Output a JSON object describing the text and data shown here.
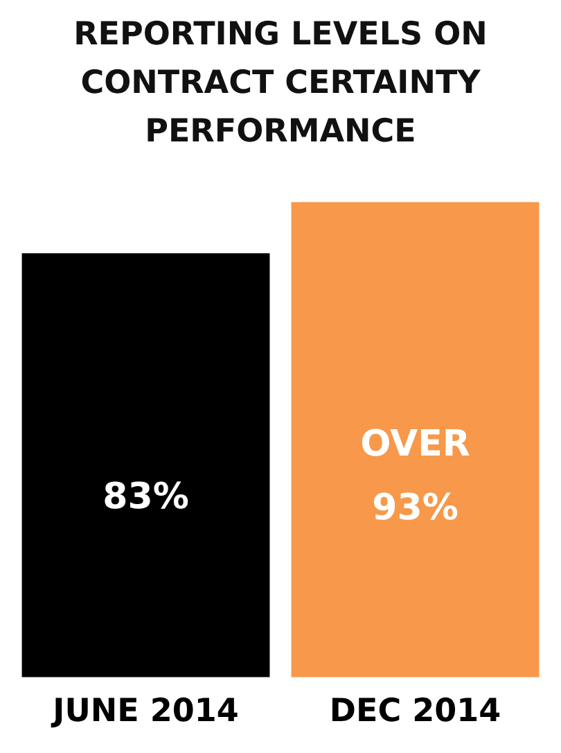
{
  "chart_data": {
    "type": "bar",
    "title": "REPORTING LEVELS ON CONTRACT CERTAINTY PERFORMANCE",
    "categories": [
      "JUNE 2014",
      "DEC 2014"
    ],
    "values": [
      83,
      93
    ],
    "colors": [
      "#000000",
      "#f7984a"
    ],
    "value_labels": [
      "83%",
      "OVER 93%"
    ],
    "tick_labels": "x",
    "grid": false,
    "legend": false
  }
}
